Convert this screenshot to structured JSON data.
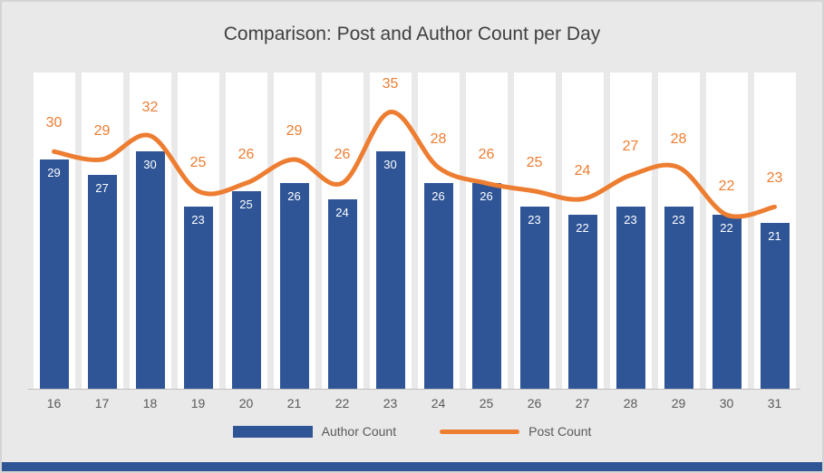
{
  "chart_data": {
    "type": "combo",
    "title": "Comparison: Post and Author Count per Day",
    "categories": [
      "16",
      "17",
      "18",
      "19",
      "20",
      "21",
      "22",
      "23",
      "24",
      "25",
      "26",
      "27",
      "28",
      "29",
      "30",
      "31"
    ],
    "series": [
      {
        "name": "Author Count",
        "type": "bar",
        "color": "#2F5597",
        "values": [
          29,
          27,
          30,
          23,
          25,
          26,
          24,
          30,
          26,
          26,
          23,
          22,
          23,
          23,
          22,
          21
        ]
      },
      {
        "name": "Post Count",
        "type": "line",
        "color": "#ED7D31",
        "values": [
          30,
          29,
          32,
          25,
          26,
          29,
          26,
          35,
          28,
          26,
          25,
          24,
          27,
          28,
          22,
          23
        ]
      }
    ],
    "ylim": [
      0,
      40
    ],
    "legend_position": "bottom",
    "value_labels": "shown",
    "grid": "vertical-bands",
    "xlabel": "",
    "ylabel": ""
  },
  "colors": {
    "background": "#e9e9e9",
    "band": "#ffffff",
    "title_text": "#404040",
    "axis_text": "#595959",
    "bar_label_text": "#ffffff",
    "frame_border": "#d4d4d4",
    "bottom_strip": "#2F5597"
  }
}
